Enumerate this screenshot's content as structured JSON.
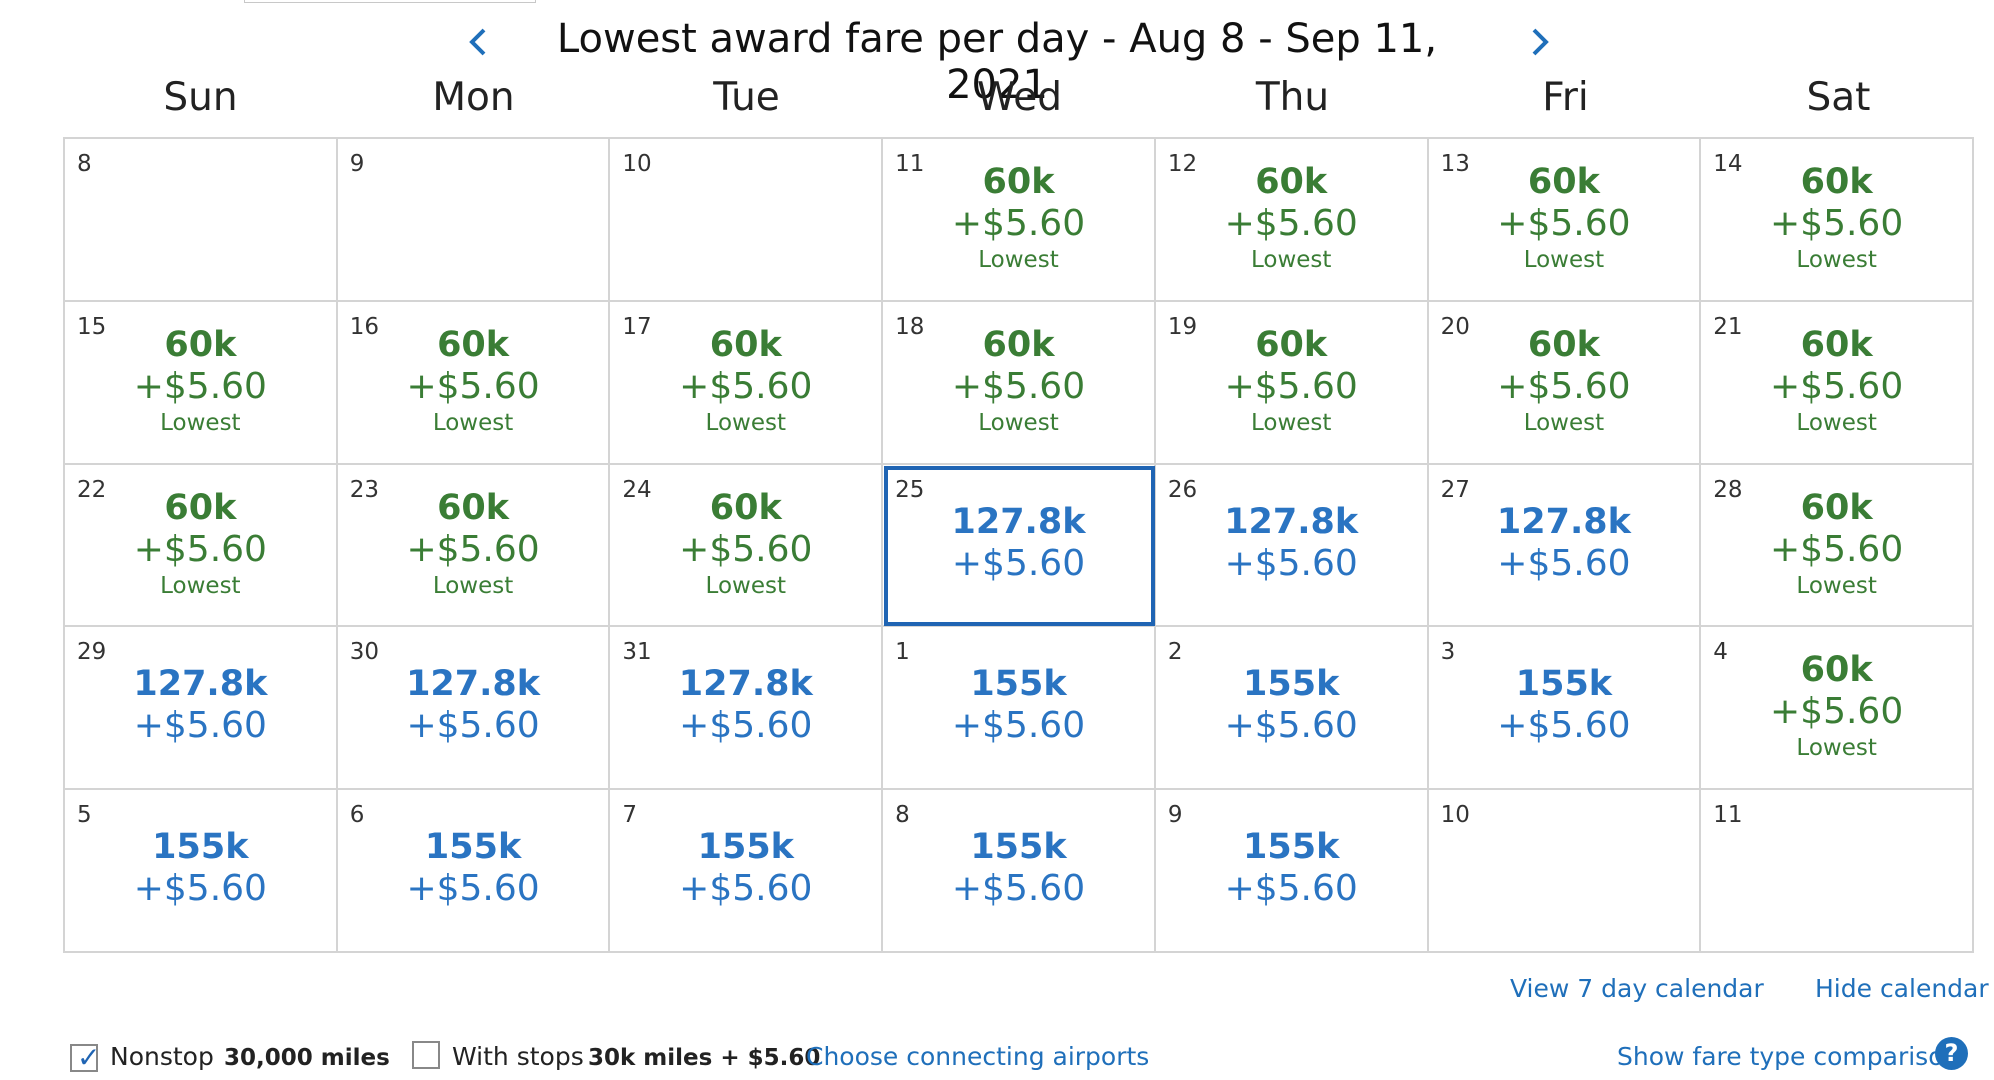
{
  "header": {
    "title": "Lowest award fare per day - Aug 8 - Sep 11, 2021",
    "prev_icon": "chevron-left-icon",
    "next_icon": "chevron-right-icon"
  },
  "weekdays": [
    "Sun",
    "Mon",
    "Tue",
    "Wed",
    "Thu",
    "Fri",
    "Sat"
  ],
  "colors": {
    "lowest_fare": "#3a7d35",
    "other_fare": "#2a74c2",
    "selected_border": "#1f64b3",
    "link": "#1f6fba"
  },
  "weeks": [
    [
      {
        "day": "8"
      },
      {
        "day": "9"
      },
      {
        "day": "10"
      },
      {
        "day": "11",
        "miles": "60k",
        "tax": "+$5.60",
        "note": "Lowest"
      },
      {
        "day": "12",
        "miles": "60k",
        "tax": "+$5.60",
        "note": "Lowest"
      },
      {
        "day": "13",
        "miles": "60k",
        "tax": "+$5.60",
        "note": "Lowest"
      },
      {
        "day": "14",
        "miles": "60k",
        "tax": "+$5.60",
        "note": "Lowest"
      }
    ],
    [
      {
        "day": "15",
        "miles": "60k",
        "tax": "+$5.60",
        "note": "Lowest"
      },
      {
        "day": "16",
        "miles": "60k",
        "tax": "+$5.60",
        "note": "Lowest"
      },
      {
        "day": "17",
        "miles": "60k",
        "tax": "+$5.60",
        "note": "Lowest"
      },
      {
        "day": "18",
        "miles": "60k",
        "tax": "+$5.60",
        "note": "Lowest"
      },
      {
        "day": "19",
        "miles": "60k",
        "tax": "+$5.60",
        "note": "Lowest"
      },
      {
        "day": "20",
        "miles": "60k",
        "tax": "+$5.60",
        "note": "Lowest"
      },
      {
        "day": "21",
        "miles": "60k",
        "tax": "+$5.60",
        "note": "Lowest"
      }
    ],
    [
      {
        "day": "22",
        "miles": "60k",
        "tax": "+$5.60",
        "note": "Lowest"
      },
      {
        "day": "23",
        "miles": "60k",
        "tax": "+$5.60",
        "note": "Lowest"
      },
      {
        "day": "24",
        "miles": "60k",
        "tax": "+$5.60",
        "note": "Lowest"
      },
      {
        "day": "25",
        "miles": "127.8k",
        "tax": "+$5.60",
        "selected": true
      },
      {
        "day": "26",
        "miles": "127.8k",
        "tax": "+$5.60"
      },
      {
        "day": "27",
        "miles": "127.8k",
        "tax": "+$5.60"
      },
      {
        "day": "28",
        "miles": "60k",
        "tax": "+$5.60",
        "note": "Lowest"
      }
    ],
    [
      {
        "day": "29",
        "miles": "127.8k",
        "tax": "+$5.60"
      },
      {
        "day": "30",
        "miles": "127.8k",
        "tax": "+$5.60"
      },
      {
        "day": "31",
        "miles": "127.8k",
        "tax": "+$5.60"
      },
      {
        "day": "1",
        "miles": "155k",
        "tax": "+$5.60"
      },
      {
        "day": "2",
        "miles": "155k",
        "tax": "+$5.60"
      },
      {
        "day": "3",
        "miles": "155k",
        "tax": "+$5.60"
      },
      {
        "day": "4",
        "miles": "60k",
        "tax": "+$5.60",
        "note": "Lowest"
      }
    ],
    [
      {
        "day": "5",
        "miles": "155k",
        "tax": "+$5.60"
      },
      {
        "day": "6",
        "miles": "155k",
        "tax": "+$5.60"
      },
      {
        "day": "7",
        "miles": "155k",
        "tax": "+$5.60"
      },
      {
        "day": "8",
        "miles": "155k",
        "tax": "+$5.60"
      },
      {
        "day": "9",
        "miles": "155k",
        "tax": "+$5.60"
      },
      {
        "day": "10"
      },
      {
        "day": "11"
      }
    ]
  ],
  "links": {
    "view7": "View 7 day calendar",
    "hide": "Hide calendar",
    "connecting": "Choose connecting airports",
    "compare": "Show fare type comparison"
  },
  "help_icon": "question-icon",
  "help_glyph": "?",
  "options": {
    "nonstop": {
      "label": "Nonstop",
      "value": "30,000 miles",
      "checked": true,
      "check_icon": "checkmark-icon"
    },
    "with_stops": {
      "label": "With stops",
      "value": "30k miles + $5.60",
      "checked": false
    }
  }
}
